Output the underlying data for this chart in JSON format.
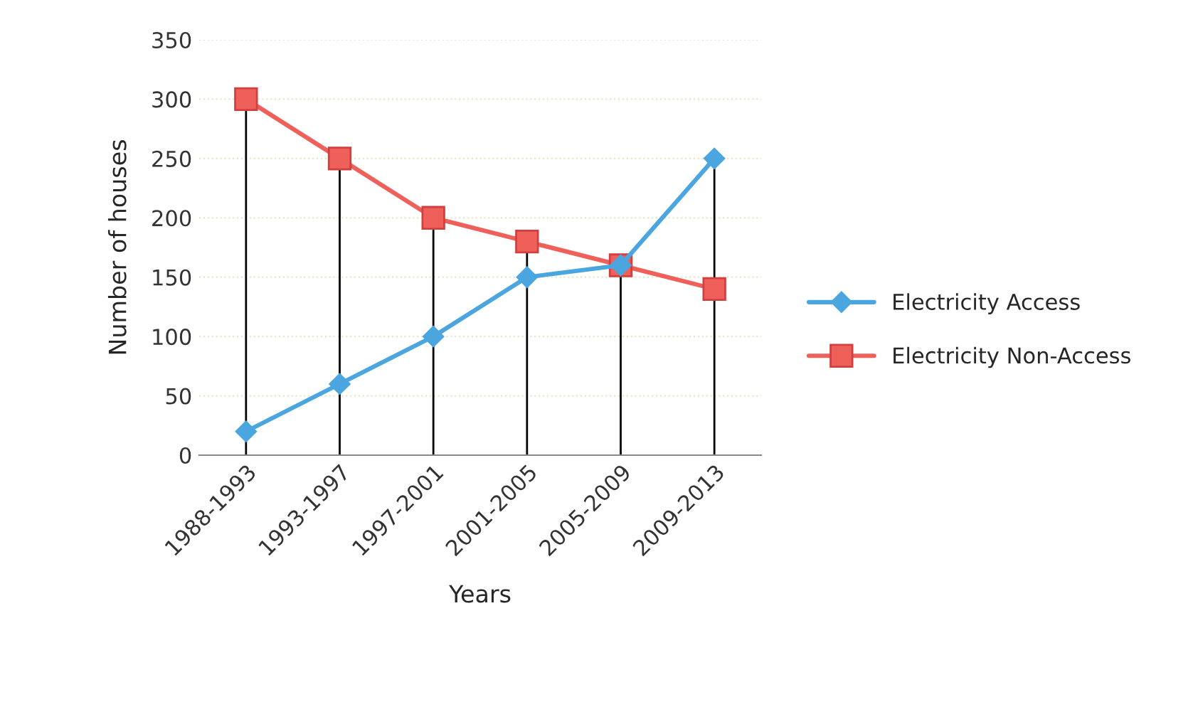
{
  "chart_data": {
    "type": "line",
    "xlabel": "Years",
    "ylabel": "Number of houses",
    "categories": [
      "1988-1993",
      "1993-1997",
      "1997-2001",
      "2001-2005",
      "2005-2009",
      "2009-2013"
    ],
    "series": [
      {
        "name": "Electricity Access",
        "color": "#4ba6e0",
        "marker": "diamond",
        "values": [
          20,
          60,
          100,
          150,
          160,
          250
        ]
      },
      {
        "name": "Electricity Non-Access",
        "color": "#f0605a",
        "marker": "square",
        "values": [
          300,
          250,
          200,
          180,
          160,
          140
        ]
      }
    ],
    "ref_lines": [
      {
        "axis": "x",
        "value": "1988-1993",
        "color": "#000000"
      },
      {
        "axis": "x",
        "value": "1993-1997",
        "color": "#000000"
      },
      {
        "axis": "x",
        "value": "1997-2001",
        "color": "#000000"
      },
      {
        "axis": "x",
        "value": "2001-2005",
        "color": "#000000"
      },
      {
        "axis": "x",
        "value": "2005-2009",
        "color": "#000000"
      },
      {
        "axis": "x",
        "value": "2009-2013",
        "color": "#000000"
      }
    ],
    "ylim": [
      0,
      350
    ],
    "yticks": [
      0,
      50,
      100,
      150,
      200,
      250,
      300,
      350
    ],
    "grid": "y",
    "legend": "right",
    "line_style": "solid"
  }
}
